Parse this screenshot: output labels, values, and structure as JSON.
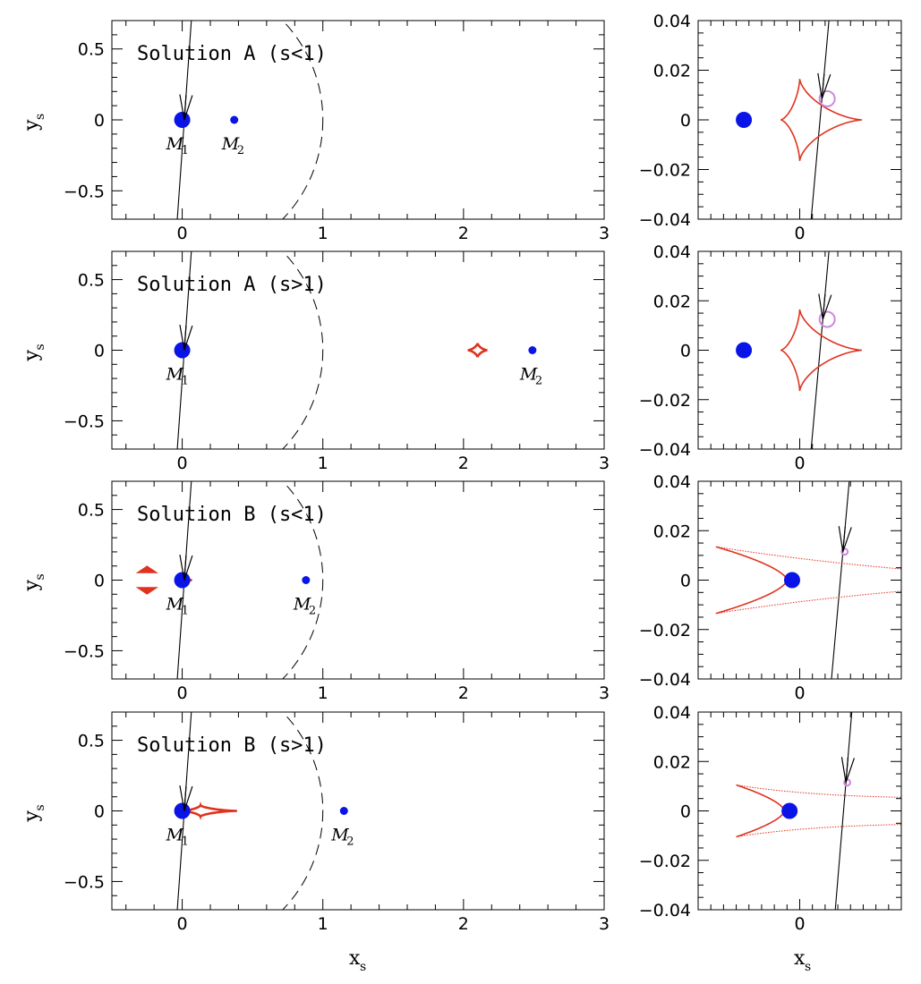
{
  "figure": {
    "x_axis_label": "x",
    "x_axis_subscript": "s",
    "y_axis_label": "y",
    "y_axis_subscript": "s"
  },
  "colors": {
    "mass": "#0a14e6",
    "caustic": "#e0321e",
    "source": "#cc88dd",
    "trajectory": "#000000"
  },
  "chart_data": [
    {
      "type": "scatter",
      "panel": "wide",
      "title": "Solution A (s<1)",
      "xlim": [
        -0.5,
        3.0
      ],
      "ylim": [
        -0.7,
        0.7
      ],
      "xticks": [
        0,
        1,
        2,
        3
      ],
      "yticks": [
        -0.5,
        0,
        0.5
      ],
      "x_tick_labels": [
        "0",
        "1",
        "2",
        "3"
      ],
      "y_tick_labels": [
        "−0.5",
        "0",
        "0.5"
      ],
      "masses": [
        {
          "name": "M1",
          "label": "M",
          "sub": "1",
          "x": 0.0,
          "y": 0.0
        },
        {
          "name": "M2",
          "label": "M",
          "sub": "2",
          "x": 0.37,
          "y": 0.0
        }
      ],
      "trajectory": {
        "x0": -0.035,
        "y0": -0.7,
        "x1": 0.065,
        "y1": 0.7
      },
      "einstein_ring": {
        "center": [
          0,
          0
        ],
        "radius": 1.0,
        "style": "dashed"
      },
      "caustics": [
        {
          "kind": "astroid",
          "cx": 0.0,
          "cy": 0.0,
          "rx": 0.02,
          "ry": 0.015
        }
      ]
    },
    {
      "type": "scatter",
      "panel": "zoom",
      "xlim": [
        -0.04,
        0.04
      ],
      "ylim": [
        -0.04,
        0.04
      ],
      "xticks": [
        0
      ],
      "yticks": [
        -0.04,
        -0.02,
        0,
        0.02,
        0.04
      ],
      "x_tick_labels": [
        "0"
      ],
      "y_tick_labels": [
        "−0.04",
        "−0.02",
        "0",
        "0.02",
        "0.04"
      ],
      "masses": [
        {
          "x": -0.022,
          "y": 0.0
        }
      ],
      "trajectory": {
        "x0": 0.0045,
        "y0": -0.04,
        "x1": 0.0115,
        "y1": 0.04
      },
      "caustics": [
        {
          "kind": "astroid",
          "cx": 0.0,
          "cy": 0.0,
          "left": -0.0075,
          "right": 0.0245,
          "top": 0.0165,
          "bottom": -0.0165
        }
      ],
      "source": {
        "x": 0.0108,
        "y": 0.0085,
        "r": 0.003
      }
    },
    {
      "type": "scatter",
      "panel": "wide",
      "title": "Solution A (s>1)",
      "xlim": [
        -0.5,
        3.0
      ],
      "ylim": [
        -0.7,
        0.7
      ],
      "xticks": [
        0,
        1,
        2,
        3
      ],
      "yticks": [
        -0.5,
        0,
        0.5
      ],
      "x_tick_labels": [
        "0",
        "1",
        "2",
        "3"
      ],
      "y_tick_labels": [
        "−0.5",
        "0",
        "0.5"
      ],
      "masses": [
        {
          "name": "M1",
          "label": "M",
          "sub": "1",
          "x": 0.0,
          "y": 0.0
        },
        {
          "name": "M2",
          "label": "M",
          "sub": "2",
          "x": 2.49,
          "y": 0.0
        }
      ],
      "trajectory": {
        "x0": -0.035,
        "y0": -0.7,
        "x1": 0.065,
        "y1": 0.7
      },
      "einstein_ring": {
        "center": [
          0,
          0
        ],
        "radius": 1.0,
        "style": "dashed"
      },
      "caustics": [
        {
          "kind": "astroid",
          "cx": 0.0,
          "cy": 0.0,
          "rx": 0.02,
          "ry": 0.015
        },
        {
          "kind": "astroid",
          "cx": 2.1,
          "cy": 0.0,
          "rx": 0.07,
          "ry": 0.05
        }
      ]
    },
    {
      "type": "scatter",
      "panel": "zoom",
      "xlim": [
        -0.04,
        0.04
      ],
      "ylim": [
        -0.04,
        0.04
      ],
      "xticks": [
        0
      ],
      "yticks": [
        -0.04,
        -0.02,
        0,
        0.02,
        0.04
      ],
      "x_tick_labels": [
        "0"
      ],
      "y_tick_labels": [
        "−0.04",
        "−0.02",
        "0",
        "0.02",
        "0.04"
      ],
      "masses": [
        {
          "x": -0.022,
          "y": 0.0
        }
      ],
      "trajectory": {
        "x0": 0.0045,
        "y0": -0.04,
        "x1": 0.0115,
        "y1": 0.04
      },
      "caustics": [
        {
          "kind": "astroid",
          "cx": 0.0,
          "cy": 0.0,
          "left": -0.0075,
          "right": 0.0245,
          "top": 0.0165,
          "bottom": -0.0165
        }
      ],
      "source": {
        "x": 0.0108,
        "y": 0.0125,
        "r": 0.003
      }
    },
    {
      "type": "scatter",
      "panel": "wide",
      "title": "Solution B (s<1)",
      "xlim": [
        -0.5,
        3.0
      ],
      "ylim": [
        -0.7,
        0.7
      ],
      "xticks": [
        0,
        1,
        2,
        3
      ],
      "yticks": [
        -0.5,
        0,
        0.5
      ],
      "x_tick_labels": [
        "0",
        "1",
        "2",
        "3"
      ],
      "y_tick_labels": [
        "−0.5",
        "0",
        "0.5"
      ],
      "masses": [
        {
          "name": "M1",
          "label": "M",
          "sub": "1",
          "x": 0.0,
          "y": 0.0
        },
        {
          "name": "M2",
          "label": "M",
          "sub": "2",
          "x": 0.88,
          "y": 0.0
        }
      ],
      "trajectory": {
        "x0": -0.035,
        "y0": -0.7,
        "x1": 0.065,
        "y1": 0.7
      },
      "einstein_ring": {
        "center": [
          0,
          0
        ],
        "radius": 1.0,
        "style": "dashed"
      },
      "caustics": [
        {
          "kind": "astroid",
          "cx": 0.02,
          "cy": 0.0,
          "rx": 0.05,
          "ry": 0.012
        },
        {
          "kind": "triangle",
          "cx": -0.25,
          "cy": 0.055,
          "flip": false
        },
        {
          "kind": "triangle",
          "cx": -0.25,
          "cy": -0.055,
          "flip": true
        }
      ]
    },
    {
      "type": "scatter",
      "panel": "zoom",
      "xlim": [
        -0.04,
        0.04
      ],
      "ylim": [
        -0.04,
        0.04
      ],
      "xticks": [
        0
      ],
      "yticks": [
        -0.04,
        -0.02,
        0,
        0.02,
        0.04
      ],
      "x_tick_labels": [
        "0"
      ],
      "y_tick_labels": [
        "−0.04",
        "−0.02",
        "0",
        "0.02",
        "0.04"
      ],
      "masses": [
        {
          "x": -0.003,
          "y": 0.0
        }
      ],
      "trajectory": {
        "x0": 0.0125,
        "y0": -0.04,
        "x1": 0.0195,
        "y1": 0.04
      },
      "caustics": [
        {
          "kind": "open-cusp",
          "tip_x": -0.005,
          "tip_y": 0.0,
          "end_x": -0.033,
          "half_width": 0.0135,
          "tail_end_x": 0.04,
          "tail_y_top": 0.0045,
          "tail_y_bottom": -0.0045
        }
      ],
      "source": {
        "x": 0.0177,
        "y": 0.0115,
        "r": 0.0012
      }
    },
    {
      "type": "scatter",
      "panel": "wide",
      "title": "Solution B (s>1)",
      "xlim": [
        -0.5,
        3.0
      ],
      "ylim": [
        -0.7,
        0.7
      ],
      "xticks": [
        0,
        1,
        2,
        3
      ],
      "yticks": [
        -0.5,
        0,
        0.5
      ],
      "x_tick_labels": [
        "0",
        "1",
        "2",
        "3"
      ],
      "y_tick_labels": [
        "−0.5",
        "0",
        "0.5"
      ],
      "masses": [
        {
          "name": "M1",
          "label": "M",
          "sub": "1",
          "x": 0.0,
          "y": 0.0
        },
        {
          "name": "M2",
          "label": "M",
          "sub": "2",
          "x": 1.15,
          "y": 0.0
        }
      ],
      "trajectory": {
        "x0": -0.035,
        "y0": -0.7,
        "x1": 0.065,
        "y1": 0.7
      },
      "einstein_ring": {
        "center": [
          0,
          0
        ],
        "radius": 1.0,
        "style": "dashed"
      },
      "caustics": [
        {
          "kind": "astroid",
          "cx": 0.13,
          "cy": 0.0,
          "left": -0.01,
          "right": 0.39,
          "top": 0.04,
          "bottom": -0.04
        }
      ]
    },
    {
      "type": "scatter",
      "panel": "zoom",
      "xlim": [
        -0.04,
        0.04
      ],
      "ylim": [
        -0.04,
        0.04
      ],
      "xticks": [
        0
      ],
      "yticks": [
        -0.04,
        -0.02,
        0,
        0.02,
        0.04
      ],
      "x_tick_labels": [
        "0"
      ],
      "y_tick_labels": [
        "−0.04",
        "−0.02",
        "0",
        "0.02",
        "0.04"
      ],
      "masses": [
        {
          "x": -0.004,
          "y": 0.0
        }
      ],
      "trajectory": {
        "x0": 0.014,
        "y0": -0.04,
        "x1": 0.0205,
        "y1": 0.04
      },
      "caustics": [
        {
          "kind": "open-cusp",
          "tip_x": -0.006,
          "tip_y": 0.0,
          "end_x": -0.025,
          "half_width": 0.0105,
          "tail_end_x": 0.04,
          "tail_y_top": 0.0055,
          "tail_y_bottom": -0.0055
        }
      ],
      "source": {
        "x": 0.0187,
        "y": 0.0115,
        "r": 0.0012
      }
    }
  ]
}
